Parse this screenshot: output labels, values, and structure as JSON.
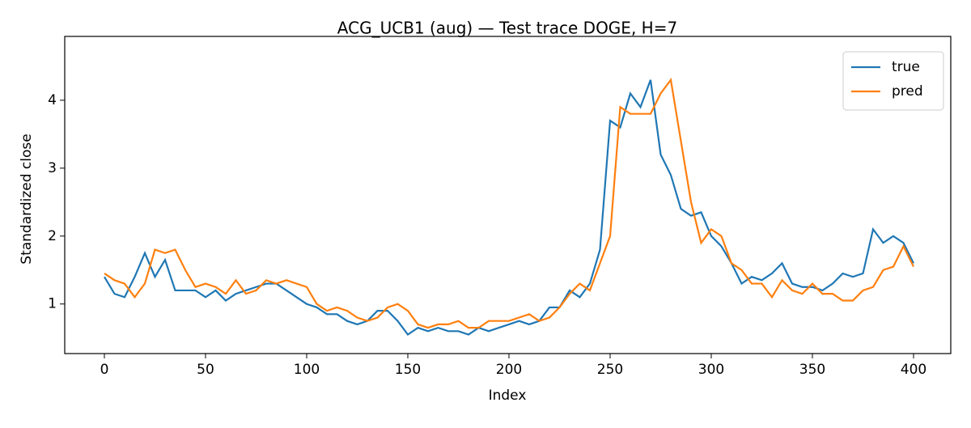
{
  "chart_data": {
    "type": "line",
    "title": "ACG_UCB1 (aug) — Test trace DOGE, H=7",
    "xlabel": "Index",
    "ylabel": "Standardized close",
    "x": [
      0,
      5,
      10,
      15,
      20,
      25,
      30,
      35,
      40,
      45,
      50,
      55,
      60,
      65,
      70,
      75,
      80,
      85,
      90,
      95,
      100,
      105,
      110,
      115,
      120,
      125,
      130,
      135,
      140,
      145,
      150,
      155,
      160,
      165,
      170,
      175,
      180,
      185,
      190,
      195,
      200,
      205,
      210,
      215,
      220,
      225,
      230,
      235,
      240,
      245,
      250,
      255,
      260,
      265,
      270,
      275,
      280,
      285,
      290,
      295,
      300,
      305,
      310,
      315,
      320,
      325,
      330,
      335,
      340,
      345,
      350,
      355,
      360,
      365,
      370,
      375,
      380,
      385,
      390,
      395,
      400
    ],
    "series": [
      {
        "name": "true",
        "color": "#1f77b4",
        "values": [
          1.4,
          1.15,
          1.1,
          1.4,
          1.75,
          1.4,
          1.65,
          1.2,
          1.2,
          1.2,
          1.1,
          1.2,
          1.05,
          1.15,
          1.2,
          1.25,
          1.3,
          1.3,
          1.2,
          1.1,
          1.0,
          0.95,
          0.85,
          0.85,
          0.75,
          0.7,
          0.75,
          0.9,
          0.9,
          0.75,
          0.55,
          0.65,
          0.6,
          0.65,
          0.6,
          0.6,
          0.55,
          0.65,
          0.6,
          0.65,
          0.7,
          0.75,
          0.7,
          0.75,
          0.95,
          0.95,
          1.2,
          1.1,
          1.3,
          1.8,
          3.7,
          3.6,
          4.1,
          3.9,
          4.3,
          3.2,
          2.9,
          2.4,
          2.3,
          2.35,
          2.0,
          1.85,
          1.6,
          1.3,
          1.4,
          1.35,
          1.45,
          1.6,
          1.3,
          1.25,
          1.25,
          1.2,
          1.3,
          1.45,
          1.4,
          1.45,
          2.1,
          1.9,
          2.0,
          1.9,
          1.6
        ]
      },
      {
        "name": "pred",
        "color": "#ff7f0e",
        "values": [
          1.45,
          1.35,
          1.3,
          1.1,
          1.3,
          1.8,
          1.75,
          1.8,
          1.5,
          1.25,
          1.3,
          1.25,
          1.15,
          1.35,
          1.15,
          1.2,
          1.35,
          1.3,
          1.35,
          1.3,
          1.25,
          1.0,
          0.9,
          0.95,
          0.9,
          0.8,
          0.75,
          0.8,
          0.95,
          1.0,
          0.9,
          0.7,
          0.65,
          0.7,
          0.7,
          0.75,
          0.65,
          0.65,
          0.75,
          0.75,
          0.75,
          0.8,
          0.85,
          0.75,
          0.8,
          0.95,
          1.15,
          1.3,
          1.2,
          1.6,
          2.0,
          3.9,
          3.8,
          3.8,
          3.8,
          4.1,
          4.3,
          3.4,
          2.5,
          1.9,
          2.1,
          2.0,
          1.6,
          1.5,
          1.3,
          1.3,
          1.1,
          1.35,
          1.2,
          1.15,
          1.3,
          1.15,
          1.15,
          1.05,
          1.05,
          1.2,
          1.25,
          1.5,
          1.55,
          1.85,
          1.55
        ]
      }
    ],
    "xlim": [
      -19.6,
      418.4
    ],
    "ylim": [
      0.27,
      4.94
    ],
    "xticks": [
      0,
      50,
      100,
      150,
      200,
      250,
      300,
      350,
      400
    ],
    "yticks": [
      1,
      2,
      3,
      4
    ],
    "grid": false,
    "legend": "upper right"
  }
}
